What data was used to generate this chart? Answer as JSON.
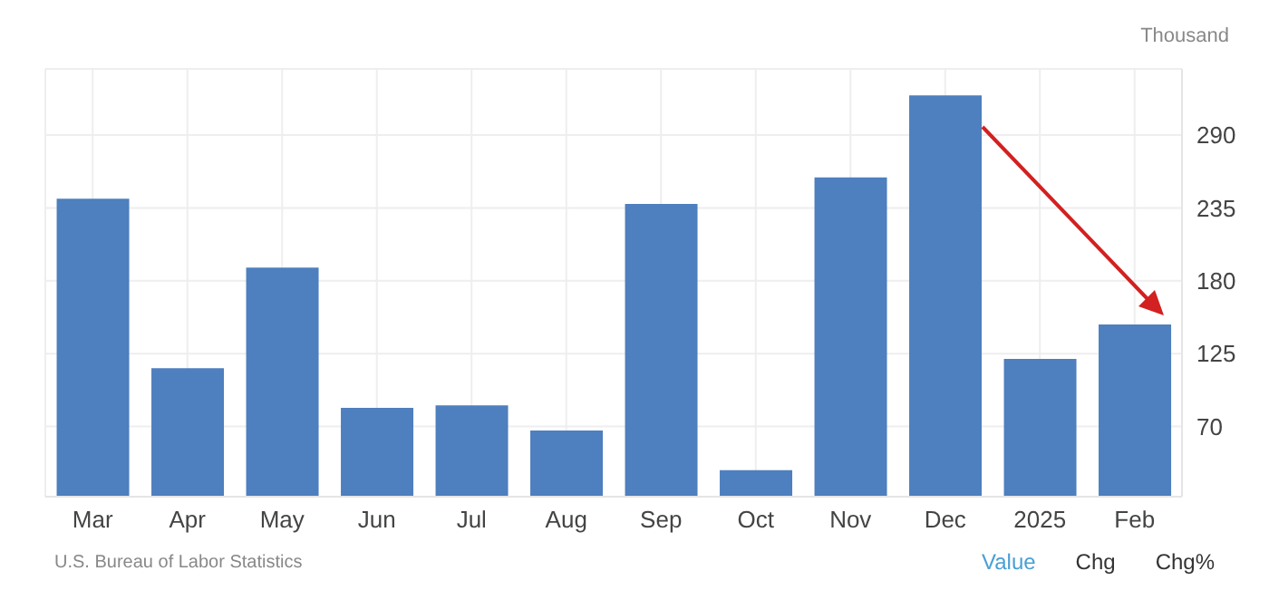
{
  "chart_data": {
    "type": "bar",
    "ylabel": "Thousand",
    "categories": [
      "Mar",
      "Apr",
      "May",
      "Jun",
      "Jul",
      "Aug",
      "Sep",
      "Oct",
      "Nov",
      "Dec",
      "2025",
      "Feb"
    ],
    "values": [
      242,
      114,
      190,
      84,
      86,
      67,
      238,
      37,
      258,
      320,
      121,
      147
    ],
    "color": "#4e7fbe",
    "ylim": [
      17,
      340
    ],
    "yticks": [
      70,
      125,
      180,
      235,
      290
    ],
    "grid": true,
    "annotations": [
      "U.S. Bureau of Labor Statistics",
      "Value",
      "Chg",
      "Chg%"
    ]
  }
}
